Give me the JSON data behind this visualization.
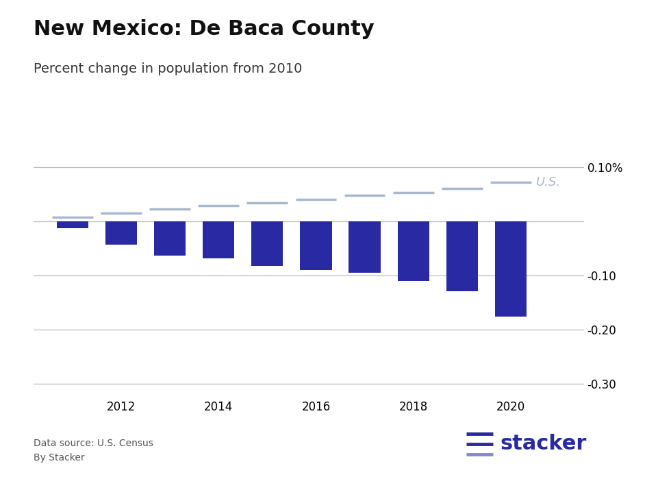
{
  "title": "New Mexico: De Baca County",
  "subtitle": "Percent change in population from 2010",
  "years": [
    2011,
    2012,
    2013,
    2014,
    2015,
    2016,
    2017,
    2018,
    2019,
    2020
  ],
  "county_values": [
    -0.012,
    -0.042,
    -0.063,
    -0.068,
    -0.082,
    -0.09,
    -0.095,
    -0.11,
    -0.128,
    -0.176
  ],
  "us_values": [
    0.008,
    0.016,
    0.023,
    0.029,
    0.035,
    0.041,
    0.048,
    0.054,
    0.061,
    0.073
  ],
  "bar_color": "#2929a3",
  "us_line_color": "#a8b8cc",
  "us_label_color": "#a8b8cc",
  "background_color": "#ffffff",
  "ylim": [
    -0.325,
    0.135
  ],
  "yticks": [
    0.1,
    0.0,
    -0.1,
    -0.2,
    -0.3
  ],
  "xlabel_years": [
    2012,
    2014,
    2016,
    2018,
    2020
  ],
  "footer_source": "Data source: U.S. Census",
  "footer_by": "By Stacker",
  "stacker_logo_color": "#2929a3",
  "grid_color": "#bbbbbb",
  "title_fontsize": 22,
  "subtitle_fontsize": 14,
  "tick_fontsize": 12
}
